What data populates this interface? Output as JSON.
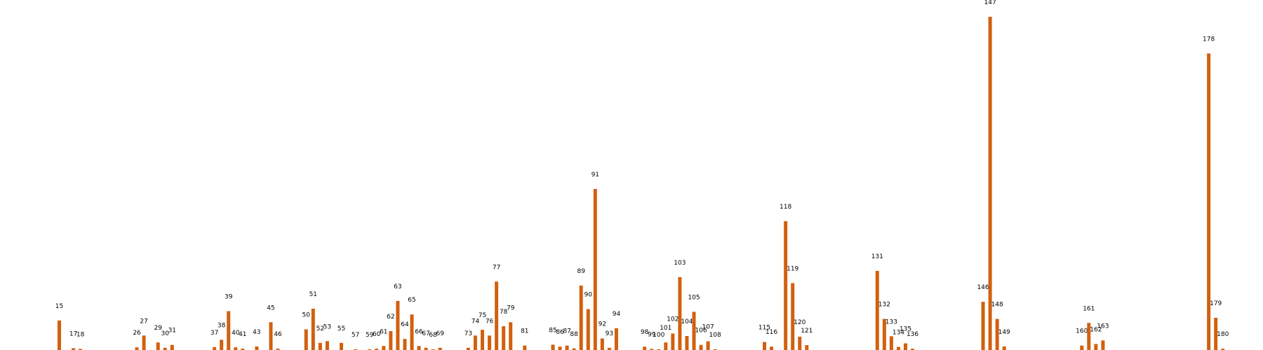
{
  "chart_data": {
    "type": "bar",
    "title": "",
    "xlabel": "",
    "ylabel": "",
    "bar_color": "#d2600e",
    "grid": false,
    "legend": "none",
    "ylim": [
      0,
      150
    ],
    "x": [
      15,
      17,
      18,
      26,
      27,
      29,
      30,
      31,
      37,
      38,
      39,
      40,
      41,
      43,
      45,
      46,
      50,
      51,
      52,
      53,
      55,
      57,
      59,
      60,
      61,
      62,
      63,
      64,
      65,
      66,
      67,
      68,
      69,
      73,
      74,
      75,
      76,
      77,
      78,
      79,
      81,
      85,
      86,
      87,
      88,
      89,
      90,
      91,
      92,
      93,
      94,
      98,
      99,
      100,
      101,
      102,
      103,
      104,
      105,
      106,
      107,
      108,
      115,
      116,
      118,
      119,
      120,
      121,
      131,
      132,
      133,
      134,
      135,
      136,
      146,
      147,
      148,
      149,
      160,
      161,
      162,
      163,
      178,
      179,
      180
    ],
    "values": [
      13.3,
      0.8,
      0.5,
      1.2,
      6.5,
      3.4,
      1.0,
      2.3,
      1.3,
      4.6,
      17.5,
      1.2,
      0.6,
      1.6,
      12.5,
      0.6,
      9.3,
      18.6,
      3.2,
      4.0,
      3.2,
      0.3,
      0.3,
      0.6,
      1.8,
      8.5,
      22.1,
      5.0,
      16.0,
      1.8,
      1.0,
      0.3,
      1.0,
      1.0,
      6.5,
      9.1,
      6.5,
      30.8,
      10.7,
      12.5,
      2.0,
      2.4,
      1.5,
      2.0,
      0.7,
      29.0,
      18.4,
      72.5,
      5.2,
      1.0,
      9.8,
      1.5,
      0.5,
      0.3,
      3.4,
      7.4,
      32.8,
      6.3,
      17.2,
      2.3,
      3.9,
      0.3,
      3.6,
      1.5,
      58.0,
      30.1,
      6.0,
      2.2,
      35.6,
      14.0,
      6.2,
      1.4,
      3.0,
      0.6,
      21.7,
      150.0,
      14.0,
      1.6,
      2.0,
      12.2,
      2.7,
      4.3,
      133.5,
      14.5,
      0.6
    ]
  }
}
